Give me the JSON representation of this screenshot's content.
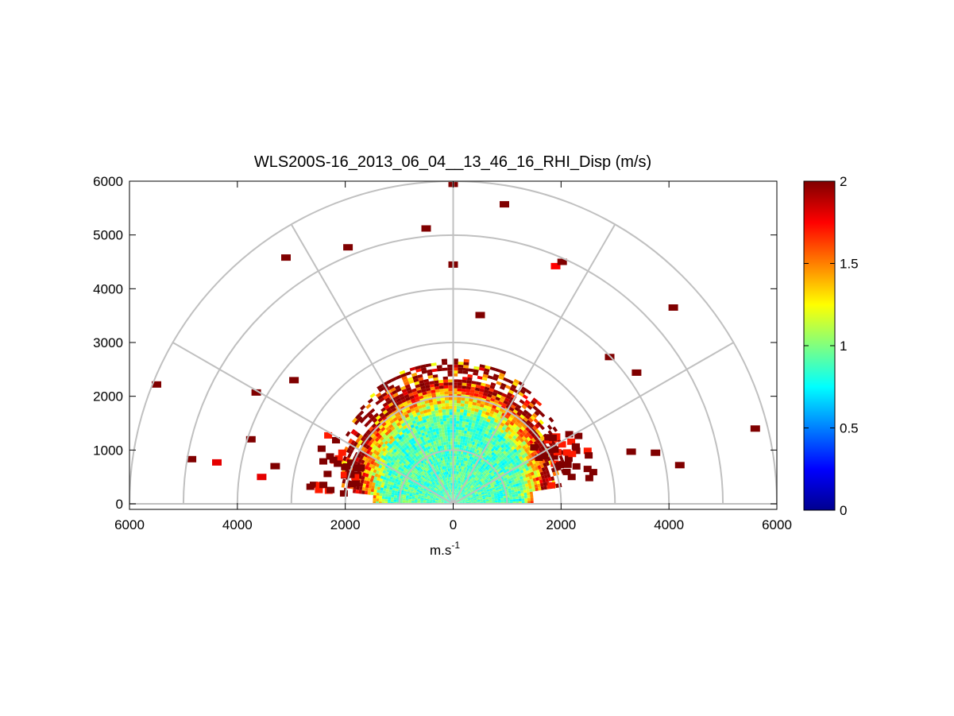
{
  "chart_data": {
    "type": "heatmap",
    "subtype": "polar-rhi-scan",
    "title": "WLS200S-16_2013_06_04__13_46_16_RHI_Disp (m/s)",
    "xlabel": "m.s",
    "xlabel_superscript": "-1",
    "ylabel": "",
    "xlim": [
      -6000,
      6000
    ],
    "ylim": [
      0,
      6000
    ],
    "x_ticks": [
      -6000,
      -4000,
      -2000,
      0,
      2000,
      4000,
      6000
    ],
    "x_tick_labels": [
      "6000",
      "4000",
      "2000",
      "0",
      "2000",
      "4000",
      "6000"
    ],
    "y_ticks": [
      0,
      1000,
      2000,
      3000,
      4000,
      5000,
      6000
    ],
    "y_tick_labels": [
      "0",
      "1000",
      "2000",
      "3000",
      "4000",
      "5000",
      "6000"
    ],
    "grid": true,
    "polar_grid": {
      "range_rings_m": [
        1000,
        2000,
        3000,
        4000,
        5000,
        6000
      ],
      "spokes_deg": [
        0,
        30,
        60,
        90,
        120,
        150,
        180
      ]
    },
    "colorbar": {
      "colormap": "jet",
      "range": [
        0,
        2
      ],
      "ticks": [
        0,
        0.5,
        1,
        1.5,
        2
      ],
      "tick_labels": [
        "0",
        "0.5",
        "1",
        "1.5",
        "2"
      ]
    },
    "field_summary": {
      "data_extent_m": 2650,
      "core_value_m_s": 0.9,
      "edge_value_m_s": 2.0
    },
    "isolated_cells": [
      {
        "x": 0,
        "y": 5950,
        "v": 2.0
      },
      {
        "x": 950,
        "y": 5570,
        "v": 2.0
      },
      {
        "x": -500,
        "y": 5120,
        "v": 2.0
      },
      {
        "x": -1950,
        "y": 4770,
        "v": 2.0
      },
      {
        "x": -3100,
        "y": 4580,
        "v": 2.0
      },
      {
        "x": 1900,
        "y": 4420,
        "v": 1.75
      },
      {
        "x": 2020,
        "y": 4500,
        "v": 2.0
      },
      {
        "x": 0,
        "y": 4450,
        "v": 2.0
      },
      {
        "x": 4080,
        "y": 3650,
        "v": 2.0
      },
      {
        "x": 500,
        "y": 3510,
        "v": 2.0
      },
      {
        "x": -5500,
        "y": 2220,
        "v": 2.0
      },
      {
        "x": 2900,
        "y": 2730,
        "v": 2.0
      },
      {
        "x": 3400,
        "y": 2440,
        "v": 2.0
      },
      {
        "x": -3650,
        "y": 2070,
        "v": 2.0
      },
      {
        "x": 5600,
        "y": 1400,
        "v": 2.0
      },
      {
        "x": -3750,
        "y": 1200,
        "v": 2.0
      },
      {
        "x": -4850,
        "y": 830,
        "v": 2.0
      },
      {
        "x": -4380,
        "y": 770,
        "v": 1.8
      },
      {
        "x": -3300,
        "y": 700,
        "v": 2.0
      },
      {
        "x": -3550,
        "y": 500,
        "v": 1.8
      },
      {
        "x": 4200,
        "y": 720,
        "v": 2.0
      },
      {
        "x": 3300,
        "y": 970,
        "v": 2.0
      },
      {
        "x": 3750,
        "y": 950,
        "v": 2.0
      },
      {
        "x": -2950,
        "y": 2300,
        "v": 2.0
      }
    ]
  }
}
